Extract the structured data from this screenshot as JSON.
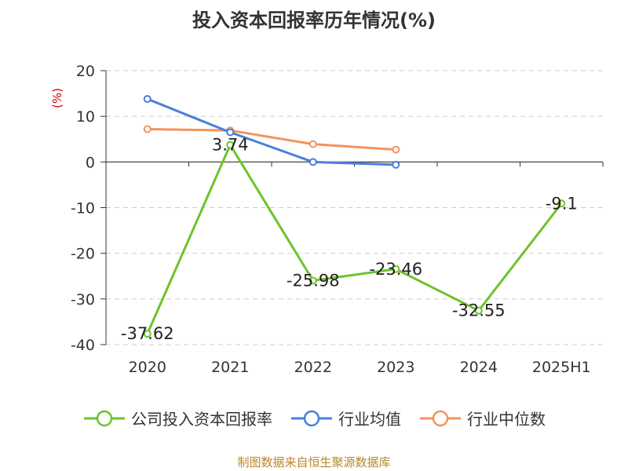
{
  "chart_data": {
    "type": "line",
    "title": "投入资本回报率历年情况(%)",
    "ylabel": "(%)",
    "categories": [
      "2020",
      "2021",
      "2022",
      "2023",
      "2024",
      "2025H1"
    ],
    "ylim": [
      -40,
      20
    ],
    "yticks": [
      20,
      10,
      0,
      -10,
      -20,
      -30,
      -40
    ],
    "grid": true,
    "legend_position": "bottom",
    "series": [
      {
        "name": "公司投入资本回报率",
        "color": "#6cc42b",
        "values": [
          -37.62,
          3.74,
          -25.98,
          -23.46,
          -32.55,
          -9.1
        ],
        "labels": [
          "-37.62",
          "3.74",
          "-25.98",
          "-23.46",
          "-32.55",
          "-9.1"
        ]
      },
      {
        "name": "行业均值",
        "color": "#4a7fdb",
        "values": [
          13.8,
          6.5,
          0.0,
          -0.6,
          null,
          null
        ]
      },
      {
        "name": "行业中位数",
        "color": "#f2935c",
        "values": [
          7.2,
          6.9,
          3.9,
          2.7,
          null,
          null
        ]
      }
    ]
  },
  "footer": {
    "source": "制图数据来自恒生聚源数据库"
  }
}
